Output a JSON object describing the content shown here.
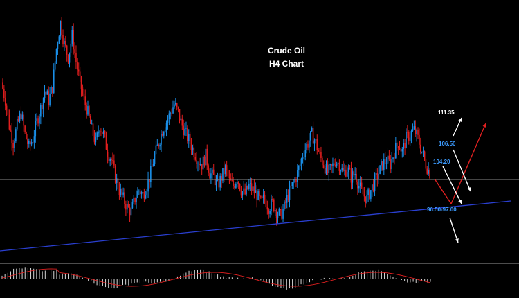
{
  "chart_data": {
    "type": "candlestick",
    "title": "Crude Oil",
    "subtitle": "H4 Chart",
    "colors": {
      "bull": "#1a8fe8",
      "bear": "#e01e1e",
      "trendline": "#2a3fd0",
      "hline": "#8a8a8a",
      "up_arrow": "#e02020",
      "white_arrow": "#ffffff",
      "level_blue": "#3c9bff",
      "level_white": "#ffffff"
    },
    "levels": [
      {
        "label": "111.35",
        "color": "#ffffff"
      },
      {
        "label": "106.50",
        "color": "#3c9bff"
      },
      {
        "label": "104.20",
        "color": "#3c9bff"
      },
      {
        "label": "96.50-97.00",
        "color": "#3c9bff"
      }
    ],
    "price_path": [
      122,
      118,
      112,
      108,
      112,
      115,
      110,
      107,
      109,
      113,
      116,
      120,
      118,
      121,
      130,
      136,
      131,
      128,
      133,
      127,
      122,
      118,
      115,
      111,
      108,
      112,
      110,
      106,
      104,
      100,
      97,
      95,
      93,
      92,
      95,
      97,
      96,
      98,
      101,
      105,
      108,
      111,
      113,
      115,
      117,
      115,
      112,
      110,
      108,
      106,
      104,
      103,
      105,
      101,
      100,
      98,
      100,
      102,
      99,
      98,
      100,
      97,
      96,
      98,
      97,
      96,
      94,
      95,
      93,
      94,
      92,
      91,
      93,
      96,
      98,
      100,
      103,
      106,
      108,
      110,
      108,
      105,
      103,
      101,
      102,
      104,
      103,
      101,
      102,
      100,
      101,
      98,
      96,
      95,
      97,
      99,
      101,
      103,
      104,
      103,
      106,
      108,
      106,
      109,
      110,
      111,
      109,
      106,
      103,
      101
    ]
  }
}
